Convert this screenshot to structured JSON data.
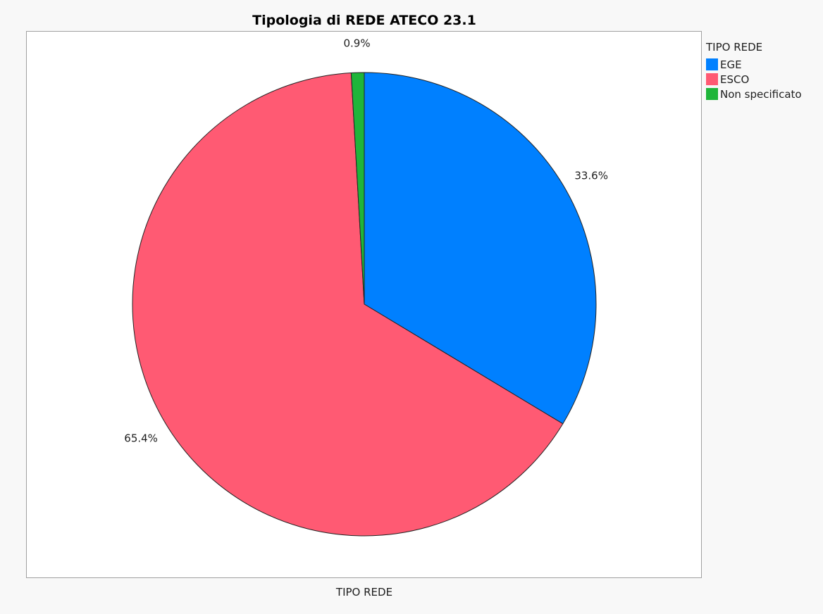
{
  "chart_data": {
    "type": "pie",
    "title": "Tipologia di REDE ATECO 23.1",
    "xlabel": "TIPO REDE",
    "legend_title": "TIPO REDE",
    "legend_position": "right",
    "slices": [
      {
        "name": "EGE",
        "value": 33.6,
        "label": "33.6%",
        "color": "#0080ff"
      },
      {
        "name": "ESCO",
        "value": 65.4,
        "label": "65.4%",
        "color": "#ff5a73"
      },
      {
        "name": "Non specificato",
        "value": 0.9,
        "label": "0.9%",
        "color": "#1fb53a"
      }
    ]
  }
}
